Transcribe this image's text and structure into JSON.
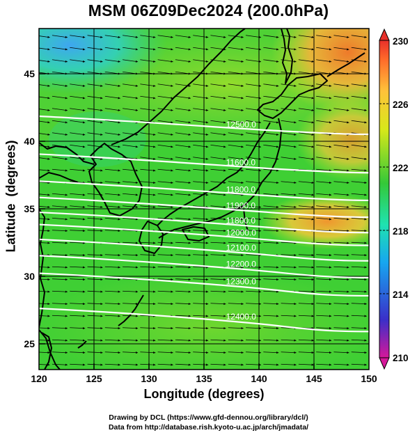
{
  "title": "MSM 06Z09Dec2024 (200.0hPa)",
  "axes": {
    "xlabel": "Longitude (degrees)",
    "ylabel": "Latitude  (degrees)",
    "x_ticks": [
      "120",
      "125",
      "130",
      "135",
      "140",
      "145",
      "150"
    ],
    "y_ticks": [
      "25",
      "30",
      "35",
      "40",
      "45"
    ],
    "xlim": [
      120,
      150
    ],
    "ylim": [
      22.4,
      47.6
    ]
  },
  "colorbar": {
    "ticks": [
      "210",
      "214",
      "218",
      "222",
      "226",
      "230"
    ],
    "range": [
      210,
      230
    ],
    "colors": [
      "#d6189a",
      "#3a2fc9",
      "#17a6f0",
      "#1fe2b0",
      "#34c838",
      "#d8e81a",
      "#ffc23a",
      "#ff6a2a",
      "#e8302a"
    ]
  },
  "contours": [
    {
      "label": "12500.0",
      "lat": 40.4
    },
    {
      "label": "11600.0",
      "lat": 37.6
    },
    {
      "label": "11800.0",
      "lat": 35.6
    },
    {
      "label": "11900.0",
      "lat": 34.4
    },
    {
      "label": "11800.0",
      "lat": 33.3
    },
    {
      "label": "12000.0",
      "lat": 32.4
    },
    {
      "label": "12100.0",
      "lat": 31.3
    },
    {
      "label": "12200.0",
      "lat": 30.1
    },
    {
      "label": "12300.0",
      "lat": 28.8
    },
    {
      "label": "12400.0",
      "lat": 26.2
    }
  ],
  "credits": {
    "line1": "Drawing by DCL (https://www.gfd-dennou.org/library/dcl/)",
    "line2": "Data from http://database.rish.kyoto-u.ac.jp/arch/jmadata/"
  }
}
